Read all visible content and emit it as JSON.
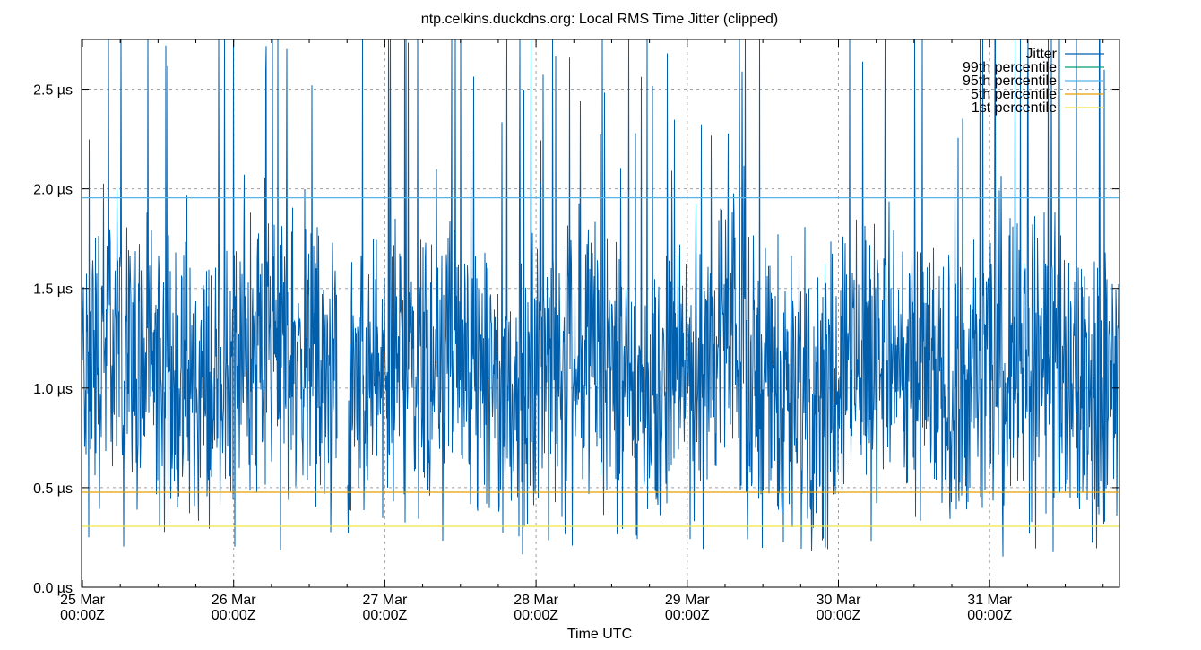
{
  "chart_data": {
    "type": "line",
    "title": "ntp.celkins.duckdns.org: Local RMS Time Jitter (clipped)",
    "xlabel": "Time UTC",
    "ylabel": "",
    "ylim": [
      0,
      2.75
    ],
    "yunit": "µs",
    "yticks": [
      "0.0 µs",
      "0.5 µs",
      "1.0 µs",
      "1.5 µs",
      "2.0 µs",
      "2.5 µs"
    ],
    "ytick_values": [
      0,
      0.5,
      1.0,
      1.5,
      2.0,
      2.5
    ],
    "xlim": [
      "2024-03-25T00:00Z",
      "2024-03-31T20:40Z"
    ],
    "xticks": [
      {
        "line1": "25 Mar",
        "line2": "00:00Z"
      },
      {
        "line1": "26 Mar",
        "line2": "00:00Z"
      },
      {
        "line1": "27 Mar",
        "line2": "00:00Z"
      },
      {
        "line1": "28 Mar",
        "line2": "00:00Z"
      },
      {
        "line1": "29 Mar",
        "line2": "00:00Z"
      },
      {
        "line1": "30 Mar",
        "line2": "00:00Z"
      },
      {
        "line1": "31 Mar",
        "line2": "00:00Z"
      }
    ],
    "grid": true,
    "legend_position": "top-right",
    "series": [
      {
        "name": "Jitter",
        "color": "#005fad",
        "typical_range": [
          0.2,
          2.75
        ],
        "gap": [
          "26 Mar 17:00Z",
          "26 Mar 18:30Z"
        ]
      },
      {
        "name": "99th percentile",
        "color": "#009e73",
        "value": null
      },
      {
        "name": "95th percentile",
        "color": "#56b4e9",
        "value": 1.955
      },
      {
        "name": "5th percentile",
        "color": "#e69f00",
        "value": 0.477
      },
      {
        "name": "1st percentile",
        "color": "#f0e442",
        "value": 0.306
      }
    ]
  }
}
